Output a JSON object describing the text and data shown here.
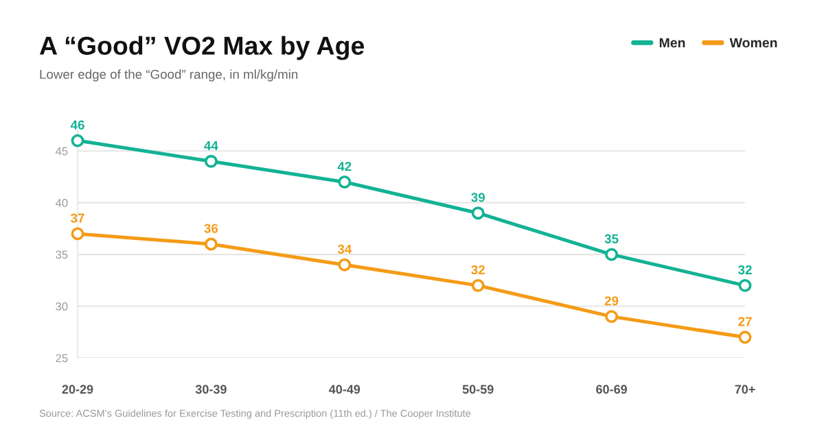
{
  "chart_data": {
    "type": "line",
    "title": "A “Good” VO2 Max by Age",
    "subtitle": "Lower edge of the “Good” range, in ml/kg/min",
    "categories": [
      "20-29",
      "30-39",
      "40-49",
      "50-59",
      "60-69",
      "70+"
    ],
    "series": [
      {
        "name": "Men",
        "color": "#13b294",
        "values": [
          46,
          44,
          42,
          39,
          35,
          32
        ]
      },
      {
        "name": "Women",
        "color": "#f49b16",
        "values": [
          37,
          36,
          34,
          32,
          29,
          27
        ]
      }
    ],
    "ylim": [
      25,
      47
    ],
    "yticks": [
      25,
      30,
      35,
      40,
      45
    ],
    "grid": "y",
    "legend": "top right",
    "marker": "circle",
    "line_style": "solid",
    "data_labels": true,
    "annotations": [
      "Source: ACSM’s Guidelines for Exercise Testing and Prescription (11th ed.) / The Cooper Institute"
    ]
  }
}
